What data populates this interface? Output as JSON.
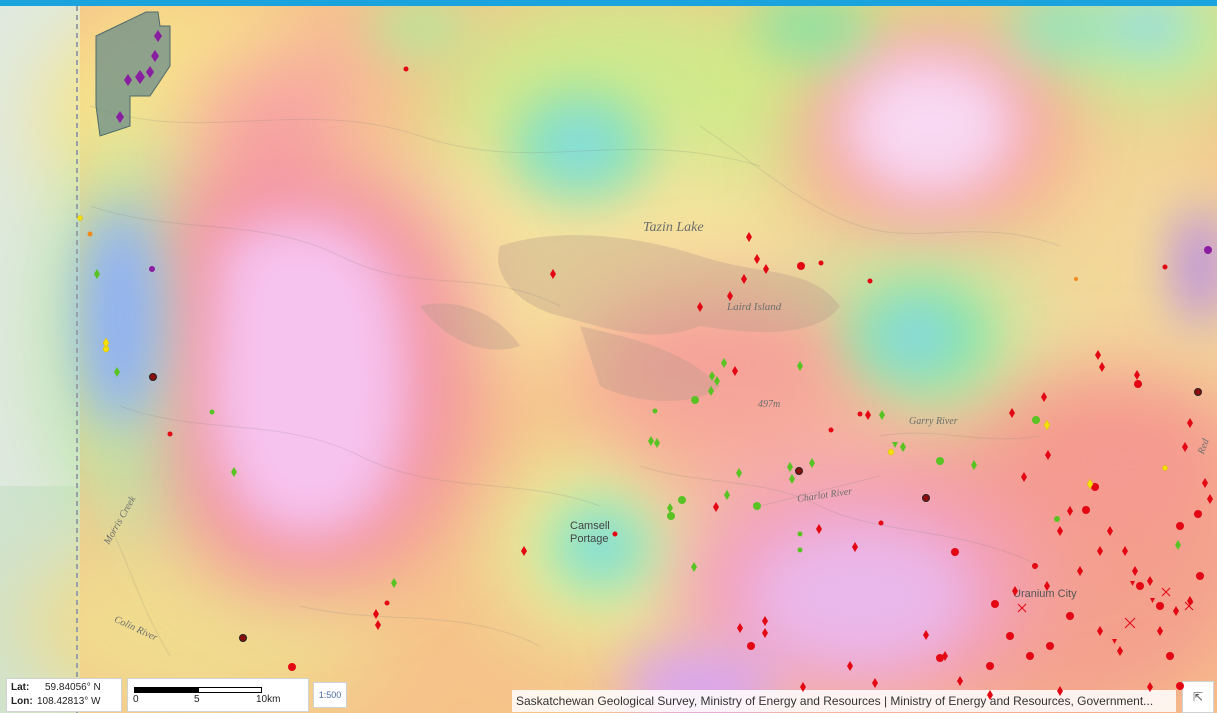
{
  "map": {
    "labels": {
      "tazin_lake": "Tazin Lake",
      "laird_island": "Laird Island",
      "garry_river": "Garry River",
      "charlot_river": "Charlot River",
      "elevation": "497m",
      "camsell_portage_line1": "Camsell",
      "camsell_portage_line2": "Portage",
      "uranium_city": "Uranium City",
      "morris_creek": "Morris Creek",
      "colin_river": "Colin River",
      "river_edge": "Red"
    },
    "colors": {
      "mineral_red": "#e30613",
      "mineral_green": "#58c322",
      "mineral_purple": "#8a1ea0",
      "mineral_yellow": "#f5e10a",
      "mineral_dark": "#8b0e0e"
    }
  },
  "coords": {
    "lat_label": "Lat:",
    "lat_value": "59.84056° N",
    "lon_label": "Lon:",
    "lon_value": "108.42813° W"
  },
  "scale": {
    "tick_0": "0",
    "tick_5": "5",
    "tick_10": "10km"
  },
  "scale_button": {
    "text": "1:500"
  },
  "attribution": {
    "text": "Saskatchewan Geological Survey, Ministry of Energy and Resources | Ministry of Energy and Resources, Government..."
  },
  "expand_button": {
    "icon": "collapse-arrow-icon"
  }
}
